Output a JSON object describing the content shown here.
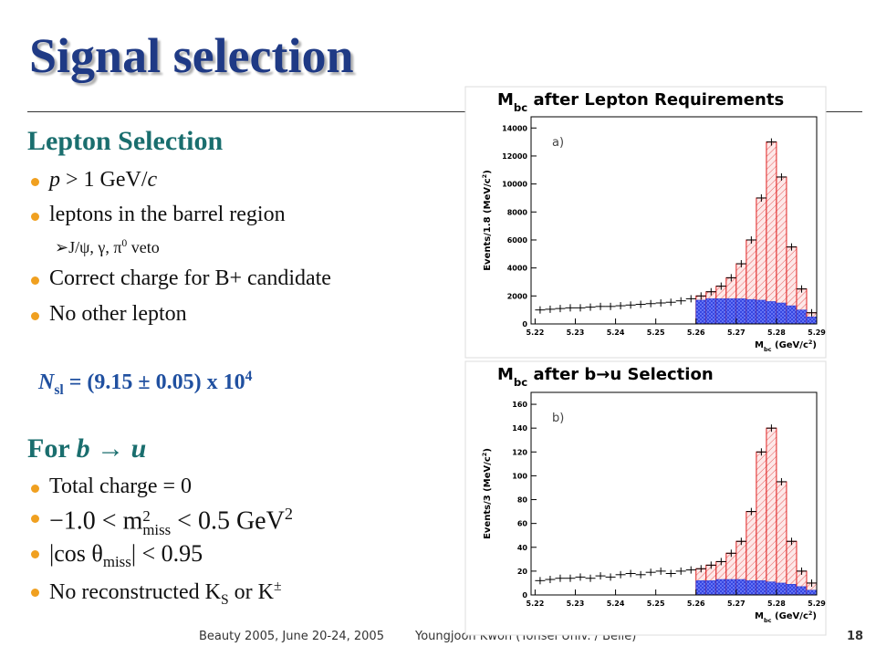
{
  "title": "Signal selection",
  "lepton": {
    "heading": "Lepton Selection",
    "bullets": [
      [
        "p",
        " > 1 GeV/",
        "c"
      ],
      [
        "leptons in the barrel region"
      ],
      [
        "Correct charge for B+ candidate"
      ],
      [
        "No other lepton"
      ]
    ],
    "sub_bullet": [
      "J/ψ, γ, π",
      "0",
      " veto"
    ],
    "nsl": [
      "N",
      "sl",
      " = (9.15 ± 0.05) x 10",
      "4"
    ]
  },
  "btou": {
    "heading": [
      "For ",
      "b",
      " → ",
      "u"
    ],
    "bullets": [
      [
        "Total charge = 0"
      ],
      [
        "−1.0 < m",
        "2",
        "miss",
        " < 0.5 GeV",
        "2"
      ],
      [
        "|cos θ",
        "miss",
        "| < 0.95"
      ],
      [
        "No reconstructed K",
        "S",
        " or K",
        "±"
      ]
    ]
  },
  "plots": [
    {
      "title": [
        "M",
        "bc",
        " after Lepton Requirements"
      ],
      "label": "a)",
      "xlabel": [
        "M",
        "bc",
        " (GeV/c",
        "2",
        ")"
      ],
      "ylabel": [
        "Events/1.8 (MeV/c",
        "2",
        ")"
      ],
      "xlim": [
        5.219,
        5.29
      ],
      "ylim": [
        0,
        14800
      ],
      "xticks": [
        5.22,
        5.23,
        5.24,
        5.25,
        5.26,
        5.27,
        5.28,
        5.29
      ],
      "yticks": [
        0,
        2000,
        4000,
        6000,
        8000,
        10000,
        12000,
        14000
      ],
      "bins": [
        5.22,
        5.2225,
        5.225,
        5.2275,
        5.23,
        5.2325,
        5.235,
        5.2375,
        5.24,
        5.2425,
        5.245,
        5.2475,
        5.25,
        5.2525,
        5.255,
        5.2575,
        5.26,
        5.2625,
        5.265,
        5.2675,
        5.27,
        5.2725,
        5.275,
        5.2775,
        5.28,
        5.2825,
        5.285,
        5.2875,
        5.29
      ],
      "data": [
        1000,
        1050,
        1100,
        1150,
        1150,
        1200,
        1250,
        1250,
        1300,
        1350,
        1400,
        1450,
        1500,
        1550,
        1650,
        1800,
        2000,
        2300,
        2700,
        3300,
        4300,
        6000,
        9000,
        13000,
        10500,
        5500,
        2500,
        800
      ],
      "background": [
        null,
        null,
        null,
        null,
        null,
        null,
        null,
        null,
        null,
        null,
        null,
        null,
        null,
        null,
        null,
        null,
        1700,
        1800,
        1800,
        1800,
        1800,
        1750,
        1700,
        1600,
        1500,
        1300,
        1000,
        500
      ],
      "colors": {
        "signal": "#e02020",
        "background": "#2030d0",
        "data": "#000000"
      }
    },
    {
      "title": [
        "M",
        "bc",
        " after b→u Selection"
      ],
      "label": "b)",
      "xlabel": [
        "M",
        "bc",
        " (GeV/c",
        "2",
        ")"
      ],
      "ylabel": [
        "Events/3 (MeV/c",
        "2",
        ")"
      ],
      "xlim": [
        5.219,
        5.29
      ],
      "ylim": [
        0,
        170
      ],
      "xticks": [
        5.22,
        5.23,
        5.24,
        5.25,
        5.26,
        5.27,
        5.28,
        5.29
      ],
      "yticks": [
        0,
        20,
        40,
        60,
        80,
        100,
        120,
        140,
        160
      ],
      "bins": [
        5.22,
        5.2225,
        5.225,
        5.2275,
        5.23,
        5.2325,
        5.235,
        5.2375,
        5.24,
        5.2425,
        5.245,
        5.2475,
        5.25,
        5.2525,
        5.255,
        5.2575,
        5.26,
        5.2625,
        5.265,
        5.2675,
        5.27,
        5.2725,
        5.275,
        5.2775,
        5.28,
        5.2825,
        5.285,
        5.2875,
        5.29
      ],
      "data": [
        12,
        13,
        14,
        14,
        15,
        14,
        16,
        15,
        17,
        18,
        17,
        19,
        20,
        18,
        20,
        21,
        22,
        25,
        28,
        35,
        45,
        70,
        120,
        140,
        95,
        45,
        20,
        10
      ],
      "background": [
        null,
        null,
        null,
        null,
        null,
        null,
        null,
        null,
        null,
        null,
        null,
        null,
        null,
        null,
        null,
        null,
        12,
        12,
        13,
        13,
        13,
        12,
        12,
        11,
        10,
        9,
        7,
        4
      ],
      "colors": {
        "signal": "#e02020",
        "background": "#2030d0",
        "data": "#000000"
      }
    }
  ],
  "footer": {
    "left": "Beauty 2005, June 20-24, 2005",
    "center": "Youngjoon Kwon (Yonsei Univ. / Belle)",
    "page": "18"
  }
}
